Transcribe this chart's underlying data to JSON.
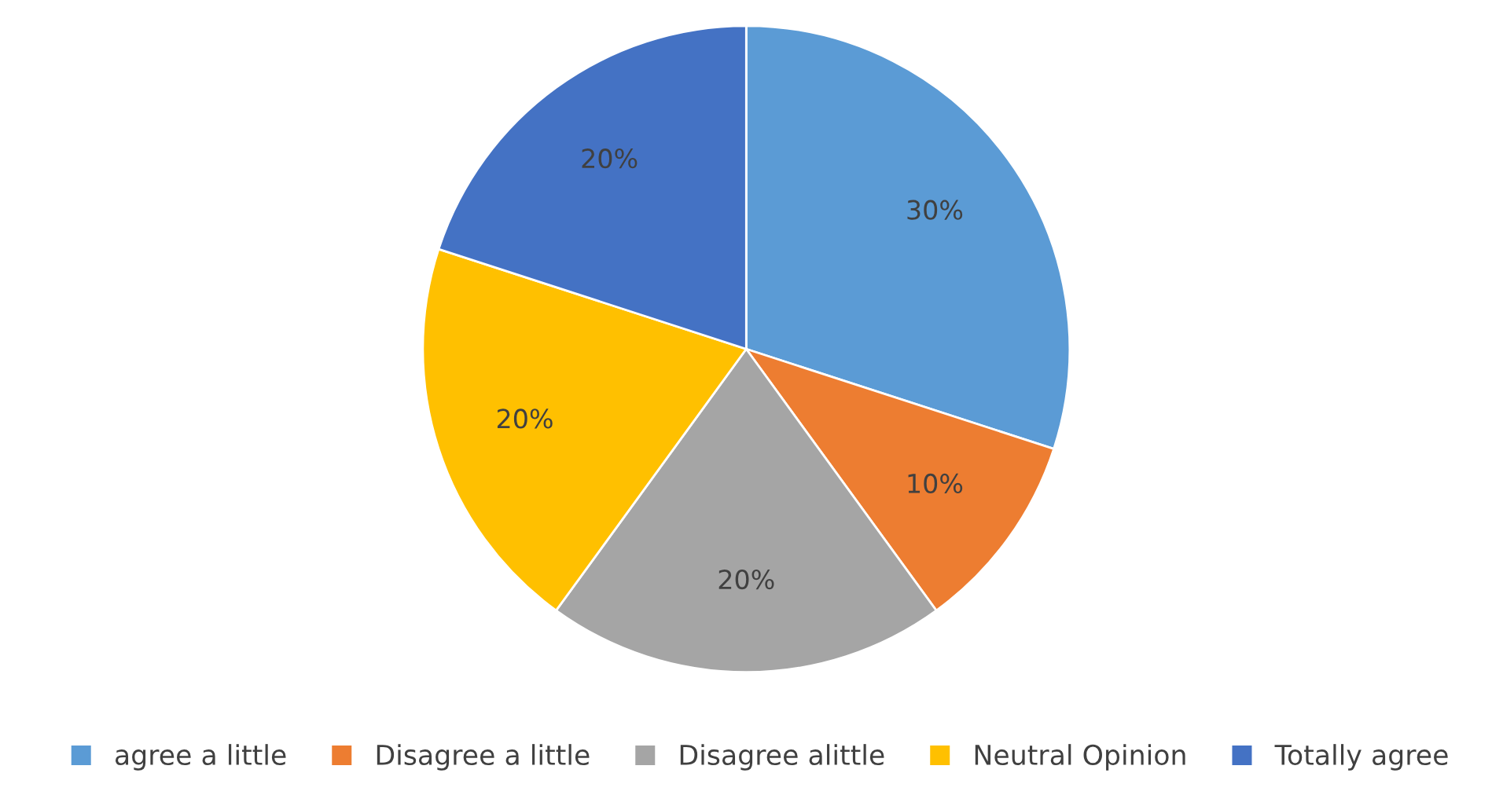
{
  "chart_data": {
    "type": "pie",
    "categories": [
      "agree a little",
      "Disagree a little",
      "Disagree alittle",
      "Neutral Opinion",
      "Totally agree"
    ],
    "values": [
      30,
      10,
      20,
      20,
      20
    ],
    "colors": [
      "#5b9bd5",
      "#ed7d31",
      "#a5a5a5",
      "#ffc000",
      "#4472c4"
    ],
    "value_labels": [
      "30%",
      "10%",
      "20%",
      "20%",
      "20%"
    ],
    "legend": "bottom"
  }
}
